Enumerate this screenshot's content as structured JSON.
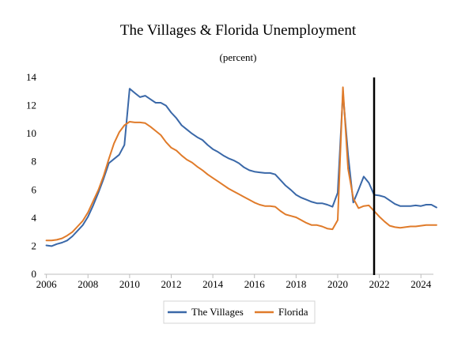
{
  "chart_data": {
    "type": "line",
    "title": "The Villages & Florida Unemployment",
    "subtitle": "(percent)",
    "xlabel": "",
    "ylabel": "",
    "xlim": [
      2005.9,
      2024.6
    ],
    "ylim": [
      0,
      14
    ],
    "x_ticks": [
      2006,
      2008,
      2010,
      2012,
      2014,
      2016,
      2018,
      2020,
      2022,
      2024
    ],
    "y_ticks": [
      0,
      2,
      4,
      6,
      8,
      10,
      12,
      14
    ],
    "grid": false,
    "legend_position": "bottom",
    "vertical_marker_x": 2021.75,
    "series": [
      {
        "name": "The Villages",
        "color": "#3a68a8",
        "points": [
          [
            2006.0,
            2.05
          ],
          [
            2006.25,
            2.0
          ],
          [
            2006.5,
            2.15
          ],
          [
            2006.75,
            2.25
          ],
          [
            2007.0,
            2.4
          ],
          [
            2007.25,
            2.7
          ],
          [
            2007.5,
            3.1
          ],
          [
            2007.75,
            3.5
          ],
          [
            2008.0,
            4.1
          ],
          [
            2008.25,
            4.9
          ],
          [
            2008.5,
            5.8
          ],
          [
            2008.75,
            6.8
          ],
          [
            2009.0,
            7.9
          ],
          [
            2009.25,
            8.2
          ],
          [
            2009.5,
            8.5
          ],
          [
            2009.75,
            9.2
          ],
          [
            2010.0,
            13.2
          ],
          [
            2010.25,
            12.9
          ],
          [
            2010.5,
            12.6
          ],
          [
            2010.75,
            12.7
          ],
          [
            2011.0,
            12.45
          ],
          [
            2011.25,
            12.2
          ],
          [
            2011.5,
            12.2
          ],
          [
            2011.75,
            12.0
          ],
          [
            2012.0,
            11.5
          ],
          [
            2012.25,
            11.1
          ],
          [
            2012.5,
            10.6
          ],
          [
            2012.75,
            10.3
          ],
          [
            2013.0,
            10.0
          ],
          [
            2013.25,
            9.75
          ],
          [
            2013.5,
            9.55
          ],
          [
            2013.75,
            9.2
          ],
          [
            2014.0,
            8.9
          ],
          [
            2014.25,
            8.7
          ],
          [
            2014.5,
            8.45
          ],
          [
            2014.75,
            8.25
          ],
          [
            2015.0,
            8.1
          ],
          [
            2015.25,
            7.9
          ],
          [
            2015.5,
            7.6
          ],
          [
            2015.75,
            7.4
          ],
          [
            2016.0,
            7.3
          ],
          [
            2016.25,
            7.25
          ],
          [
            2016.5,
            7.2
          ],
          [
            2016.75,
            7.2
          ],
          [
            2017.0,
            7.1
          ],
          [
            2017.25,
            6.7
          ],
          [
            2017.5,
            6.3
          ],
          [
            2017.75,
            6.0
          ],
          [
            2018.0,
            5.65
          ],
          [
            2018.25,
            5.45
          ],
          [
            2018.5,
            5.3
          ],
          [
            2018.75,
            5.15
          ],
          [
            2019.0,
            5.05
          ],
          [
            2019.25,
            5.05
          ],
          [
            2019.5,
            4.95
          ],
          [
            2019.75,
            4.8
          ],
          [
            2020.0,
            5.8
          ],
          [
            2020.25,
            12.9
          ],
          [
            2020.5,
            8.5
          ],
          [
            2020.75,
            5.1
          ],
          [
            2021.0,
            6.0
          ],
          [
            2021.25,
            6.95
          ],
          [
            2021.5,
            6.5
          ],
          [
            2021.75,
            5.65
          ],
          [
            2022.0,
            5.6
          ],
          [
            2022.25,
            5.5
          ],
          [
            2022.5,
            5.25
          ],
          [
            2022.75,
            5.0
          ],
          [
            2023.0,
            4.85
          ],
          [
            2023.25,
            4.85
          ],
          [
            2023.5,
            4.85
          ],
          [
            2023.75,
            4.9
          ],
          [
            2024.0,
            4.85
          ],
          [
            2024.25,
            4.95
          ],
          [
            2024.5,
            4.95
          ],
          [
            2024.75,
            4.75
          ]
        ]
      },
      {
        "name": "Florida",
        "color": "#e07b2a",
        "points": [
          [
            2006.0,
            2.4
          ],
          [
            2006.25,
            2.4
          ],
          [
            2006.5,
            2.45
          ],
          [
            2006.75,
            2.55
          ],
          [
            2007.0,
            2.75
          ],
          [
            2007.25,
            3.0
          ],
          [
            2007.5,
            3.4
          ],
          [
            2007.75,
            3.8
          ],
          [
            2008.0,
            4.4
          ],
          [
            2008.25,
            5.2
          ],
          [
            2008.5,
            6.0
          ],
          [
            2008.75,
            7.0
          ],
          [
            2009.0,
            8.2
          ],
          [
            2009.25,
            9.3
          ],
          [
            2009.5,
            10.1
          ],
          [
            2009.75,
            10.6
          ],
          [
            2010.0,
            10.85
          ],
          [
            2010.25,
            10.8
          ],
          [
            2010.5,
            10.8
          ],
          [
            2010.75,
            10.75
          ],
          [
            2011.0,
            10.5
          ],
          [
            2011.25,
            10.2
          ],
          [
            2011.5,
            9.9
          ],
          [
            2011.75,
            9.4
          ],
          [
            2012.0,
            9.0
          ],
          [
            2012.25,
            8.8
          ],
          [
            2012.5,
            8.45
          ],
          [
            2012.75,
            8.15
          ],
          [
            2013.0,
            7.95
          ],
          [
            2013.25,
            7.65
          ],
          [
            2013.5,
            7.4
          ],
          [
            2013.75,
            7.1
          ],
          [
            2014.0,
            6.85
          ],
          [
            2014.25,
            6.6
          ],
          [
            2014.5,
            6.35
          ],
          [
            2014.75,
            6.1
          ],
          [
            2015.0,
            5.9
          ],
          [
            2015.25,
            5.7
          ],
          [
            2015.5,
            5.5
          ],
          [
            2015.75,
            5.3
          ],
          [
            2016.0,
            5.1
          ],
          [
            2016.25,
            4.95
          ],
          [
            2016.5,
            4.85
          ],
          [
            2016.75,
            4.85
          ],
          [
            2017.0,
            4.8
          ],
          [
            2017.25,
            4.5
          ],
          [
            2017.5,
            4.25
          ],
          [
            2017.75,
            4.15
          ],
          [
            2018.0,
            4.05
          ],
          [
            2018.25,
            3.85
          ],
          [
            2018.5,
            3.65
          ],
          [
            2018.75,
            3.5
          ],
          [
            2019.0,
            3.5
          ],
          [
            2019.25,
            3.4
          ],
          [
            2019.5,
            3.25
          ],
          [
            2019.75,
            3.2
          ],
          [
            2020.0,
            3.85
          ],
          [
            2020.25,
            13.3
          ],
          [
            2020.5,
            7.5
          ],
          [
            2020.75,
            5.4
          ],
          [
            2021.0,
            4.7
          ],
          [
            2021.25,
            4.85
          ],
          [
            2021.5,
            4.9
          ],
          [
            2021.75,
            4.5
          ],
          [
            2022.0,
            4.1
          ],
          [
            2022.25,
            3.75
          ],
          [
            2022.5,
            3.45
          ],
          [
            2022.75,
            3.35
          ],
          [
            2023.0,
            3.3
          ],
          [
            2023.25,
            3.35
          ],
          [
            2023.5,
            3.4
          ],
          [
            2023.75,
            3.4
          ],
          [
            2024.0,
            3.45
          ],
          [
            2024.25,
            3.5
          ],
          [
            2024.5,
            3.5
          ],
          [
            2024.75,
            3.5
          ]
        ]
      }
    ]
  }
}
